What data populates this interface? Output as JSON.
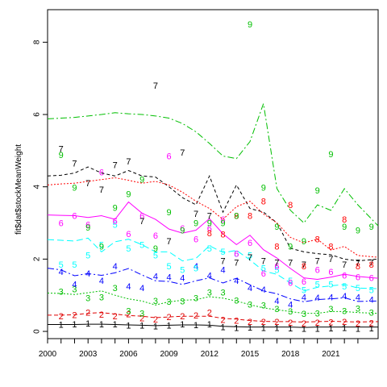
{
  "chart_data": {
    "type": "line",
    "title": "",
    "xlabel": "",
    "ylabel": "fit$dat$stockMeanWeight",
    "xlim": [
      2000,
      2024.5
    ],
    "ylim": [
      -0.2,
      8.9
    ],
    "x_ticks": [
      2000,
      2001,
      2002,
      2003,
      2004,
      2005,
      2006,
      2007,
      2008,
      2009,
      2010,
      2011,
      2012,
      2013,
      2014,
      2015,
      2016,
      2017,
      2018,
      2019,
      2020,
      2021,
      2022,
      2023
    ],
    "x_tick_labels": [
      "2000",
      "",
      "",
      "2003",
      "",
      "",
      "2006",
      "",
      "",
      "2009",
      "",
      "",
      "2012",
      "",
      "",
      "2015",
      "",
      "",
      "2018",
      "",
      "",
      "2021",
      "",
      ""
    ],
    "y_ticks": [
      0,
      2,
      4,
      6,
      8
    ],
    "y_tick_labels": [
      "0",
      "2",
      "4",
      "6",
      "8"
    ],
    "grid": false,
    "legend": "none",
    "series": [
      {
        "label": "1",
        "color": "#000000",
        "dash": "",
        "fit_x": [
          2000,
          2001,
          2002,
          2003,
          2004,
          2005,
          2006,
          2007,
          2008,
          2009,
          2010,
          2011,
          2012,
          2013,
          2014,
          2015,
          2016,
          2017,
          2018,
          2019,
          2020,
          2021,
          2022,
          2023,
          2024.5
        ],
        "fit_y": [
          0.19,
          0.19,
          0.19,
          0.2,
          0.2,
          0.19,
          0.18,
          0.17,
          0.16,
          0.17,
          0.18,
          0.18,
          0.17,
          0.14,
          0.13,
          0.12,
          0.12,
          0.12,
          0.12,
          0.11,
          0.12,
          0.12,
          0.12,
          0.12,
          0.12
        ],
        "obs_x": [
          2001,
          2002,
          2003,
          2004,
          2005,
          2006,
          2007,
          2008,
          2009,
          2010,
          2011,
          2012,
          2013,
          2014,
          2015,
          2016,
          2017,
          2018,
          2019,
          2020,
          2021,
          2022,
          2023,
          2024
        ],
        "obs_y": [
          0.19,
          0.2,
          0.22,
          0.2,
          0.2,
          0.16,
          0.17,
          0.14,
          0.17,
          0.2,
          0.18,
          0.2,
          0.12,
          0.1,
          0.11,
          0.1,
          0.1,
          0.09,
          0.08,
          0.08,
          0.09,
          0.1,
          0.08,
          0.09
        ]
      },
      {
        "label": "2",
        "color": "#df0000",
        "dash": "5,3",
        "fit_x": [
          2000,
          2001,
          2002,
          2003,
          2004,
          2005,
          2006,
          2007,
          2008,
          2009,
          2010,
          2011,
          2012,
          2013,
          2014,
          2015,
          2016,
          2017,
          2018,
          2019,
          2020,
          2021,
          2022,
          2023,
          2024.5
        ],
        "fit_y": [
          0.45,
          0.45,
          0.46,
          0.5,
          0.52,
          0.48,
          0.44,
          0.42,
          0.38,
          0.4,
          0.42,
          0.42,
          0.42,
          0.36,
          0.34,
          0.3,
          0.28,
          0.27,
          0.27,
          0.26,
          0.27,
          0.28,
          0.27,
          0.26,
          0.27
        ],
        "obs_x": [
          2001,
          2002,
          2003,
          2004,
          2005,
          2006,
          2007,
          2008,
          2009,
          2010,
          2011,
          2012,
          2013,
          2014,
          2015,
          2016,
          2017,
          2018,
          2019,
          2020,
          2021,
          2022,
          2023,
          2024
        ],
        "obs_y": [
          0.42,
          0.45,
          0.52,
          0.47,
          0.42,
          0.48,
          0.36,
          0.33,
          0.4,
          0.42,
          0.44,
          0.52,
          0.32,
          0.3,
          0.27,
          0.27,
          0.26,
          0.24,
          0.22,
          0.24,
          0.25,
          0.27,
          0.22,
          0.23
        ]
      },
      {
        "label": "3",
        "color": "#00bf00",
        "dash": "2,2",
        "fit_x": [
          2000,
          2001,
          2002,
          2003,
          2004,
          2005,
          2006,
          2007,
          2008,
          2009,
          2010,
          2011,
          2012,
          2013,
          2014,
          2015,
          2016,
          2017,
          2018,
          2019,
          2020,
          2021,
          2022,
          2023,
          2024.5
        ],
        "fit_y": [
          1.06,
          1.05,
          1.02,
          1.07,
          1.12,
          1.0,
          0.9,
          0.84,
          0.73,
          0.82,
          0.86,
          0.88,
          0.96,
          0.92,
          0.84,
          0.74,
          0.65,
          0.6,
          0.55,
          0.5,
          0.5,
          0.55,
          0.55,
          0.52,
          0.5
        ],
        "obs_x": [
          2001,
          2002,
          2003,
          2004,
          2005,
          2006,
          2007,
          2008,
          2009,
          2010,
          2011,
          2012,
          2013,
          2014,
          2015,
          2016,
          2017,
          2018,
          2019,
          2020,
          2021,
          2022,
          2023,
          2024
        ],
        "obs_y": [
          1.1,
          1.17,
          0.92,
          0.94,
          1.2,
          0.57,
          0.5,
          0.85,
          0.82,
          0.83,
          0.92,
          1.08,
          1.08,
          0.86,
          0.74,
          0.72,
          0.62,
          0.56,
          0.49,
          0.5,
          0.62,
          0.57,
          0.63,
          0.52
        ]
      },
      {
        "label": "4",
        "color": "#0000ff",
        "dash": "8,3,2,3",
        "fit_x": [
          2000,
          2001,
          2002,
          2003,
          2004,
          2005,
          2006,
          2007,
          2008,
          2009,
          2010,
          2011,
          2012,
          2013,
          2014,
          2015,
          2016,
          2017,
          2018,
          2019,
          2020,
          2021,
          2022,
          2023,
          2024.5
        ],
        "fit_y": [
          1.75,
          1.7,
          1.54,
          1.6,
          1.55,
          1.62,
          1.74,
          1.56,
          1.4,
          1.38,
          1.3,
          1.4,
          1.48,
          1.34,
          1.47,
          1.29,
          1.12,
          1.04,
          0.9,
          0.82,
          0.88,
          0.9,
          0.93,
          0.83,
          0.84
        ],
        "obs_x": [
          2001,
          2002,
          2003,
          2004,
          2005,
          2006,
          2007,
          2008,
          2009,
          2010,
          2011,
          2012,
          2013,
          2014,
          2015,
          2016,
          2017,
          2018,
          2019,
          2020,
          2021,
          2022,
          2023,
          2024
        ],
        "obs_y": [
          1.65,
          1.3,
          1.6,
          1.4,
          1.8,
          1.25,
          1.2,
          1.52,
          1.5,
          1.48,
          1.8,
          1.55,
          1.7,
          1.4,
          1.2,
          1.16,
          0.85,
          0.75,
          0.95,
          0.93,
          0.95,
          0.98,
          0.95,
          0.88
        ]
      },
      {
        "label": "5",
        "color": "#00ffff",
        "dash": "8,4",
        "fit_x": [
          2000,
          2001,
          2002,
          2003,
          2004,
          2005,
          2006,
          2007,
          2008,
          2009,
          2010,
          2011,
          2012,
          2013,
          2014,
          2015,
          2016,
          2017,
          2018,
          2019,
          2020,
          2021,
          2022,
          2023,
          2024.5
        ],
        "fit_y": [
          2.54,
          2.52,
          2.5,
          2.58,
          2.2,
          2.48,
          2.55,
          2.4,
          2.2,
          2.2,
          1.95,
          2.02,
          2.37,
          2.18,
          2.24,
          1.98,
          1.67,
          1.58,
          1.34,
          1.12,
          1.22,
          1.26,
          1.3,
          1.2,
          1.18
        ],
        "obs_x": [
          2001,
          2002,
          2003,
          2004,
          2005,
          2006,
          2007,
          2008,
          2009,
          2010,
          2011,
          2012,
          2013,
          2014,
          2015,
          2016,
          2017,
          2018,
          2019,
          2020,
          2021,
          2022,
          2023,
          2024
        ],
        "obs_y": [
          1.85,
          1.85,
          2.1,
          2.4,
          2.95,
          2.3,
          2.4,
          2.1,
          1.8,
          1.7,
          1.75,
          2.3,
          2.2,
          2.15,
          2.1,
          1.75,
          1.7,
          1.4,
          1.15,
          1.3,
          1.3,
          1.25,
          1.2,
          1.15
        ]
      },
      {
        "label": "6",
        "color": "#ff00ff",
        "dash": "",
        "fit_x": [
          2000,
          2001,
          2002,
          2003,
          2004,
          2005,
          2006,
          2007,
          2008,
          2009,
          2010,
          2011,
          2012,
          2013,
          2014,
          2015,
          2016,
          2017,
          2018,
          2019,
          2020,
          2021,
          2022,
          2023,
          2024.5
        ],
        "fit_y": [
          3.22,
          3.21,
          3.2,
          3.15,
          3.2,
          3.1,
          3.58,
          3.27,
          3.1,
          2.83,
          2.72,
          2.8,
          3.12,
          2.7,
          2.4,
          2.66,
          2.26,
          2.03,
          1.74,
          1.48,
          1.44,
          1.5,
          1.58,
          1.52,
          1.47
        ],
        "obs_x": [
          2001,
          2002,
          2003,
          2004,
          2005,
          2006,
          2007,
          2008,
          2009,
          2010,
          2011,
          2012,
          2013,
          2014,
          2015,
          2016,
          2017,
          2018,
          2019,
          2020,
          2021,
          2022,
          2023,
          2024
        ],
        "obs_y": [
          3.0,
          3.2,
          2.95,
          4.4,
          3.05,
          2.7,
          3.2,
          2.65,
          4.85,
          2.85,
          2.55,
          2.85,
          3.1,
          2.15,
          2.45,
          1.6,
          1.8,
          1.35,
          1.38,
          1.7,
          1.65,
          1.55,
          1.5,
          1.48
        ]
      },
      {
        "label": "7",
        "color": "#000000",
        "dash": "4,3",
        "fit_x": [
          2000,
          2001,
          2002,
          2003,
          2004,
          2005,
          2006,
          2007,
          2008,
          2009,
          2010,
          2011,
          2012,
          2013,
          2014,
          2015,
          2016,
          2017,
          2018,
          2019,
          2020,
          2021,
          2022,
          2023,
          2024.5
        ],
        "fit_y": [
          4.3,
          4.32,
          4.38,
          4.55,
          4.38,
          4.3,
          4.45,
          4.3,
          4.27,
          4.0,
          3.7,
          3.5,
          4.3,
          3.3,
          4.05,
          3.4,
          3.3,
          3.0,
          2.3,
          2.2,
          2.15,
          2.12,
          2.0,
          1.95,
          2.0
        ],
        "obs_x": [
          2001,
          2002,
          2003,
          2004,
          2005,
          2006,
          2007,
          2008,
          2009,
          2010,
          2011,
          2012,
          2013,
          2014,
          2015,
          2016,
          2017,
          2018,
          2019,
          2020,
          2021,
          2022,
          2023,
          2024
        ],
        "obs_y": [
          5.05,
          4.65,
          4.1,
          3.92,
          4.6,
          4.7,
          3.05,
          6.8,
          2.5,
          4.95,
          3.25,
          3.2,
          1.95,
          1.9,
          2.05,
          1.95,
          1.9,
          1.9,
          1.85,
          1.95,
          2.0,
          1.85,
          1.9,
          1.9
        ]
      },
      {
        "label": "8",
        "color": "#ff0000",
        "dash": "2,2",
        "fit_x": [
          2000,
          2001,
          2002,
          2003,
          2004,
          2005,
          2006,
          2007,
          2008,
          2009,
          2010,
          2011,
          2012,
          2013,
          2014,
          2015,
          2016,
          2017,
          2018,
          2019,
          2020,
          2021,
          2022,
          2023,
          2024.5
        ],
        "fit_y": [
          4.05,
          4.08,
          4.1,
          4.15,
          4.2,
          4.25,
          4.18,
          4.1,
          4.15,
          4.05,
          3.85,
          3.6,
          3.4,
          3.1,
          3.45,
          3.6,
          3.25,
          3.0,
          2.6,
          2.45,
          2.55,
          2.25,
          2.35,
          2.1,
          2.05
        ],
        "obs_x": [
          2012,
          2013,
          2014,
          2015,
          2016,
          2017,
          2018,
          2019,
          2020,
          2021,
          2022,
          2023,
          2024
        ],
        "obs_y": [
          2.72,
          2.68,
          3.2,
          3.2,
          3.6,
          2.35,
          3.5,
          1.8,
          2.55,
          2.35,
          3.1,
          1.8,
          1.85
        ]
      },
      {
        "label": "9",
        "color": "#00bf00",
        "dash": "8,3,2,3",
        "fit_x": [
          2000,
          2001,
          2002,
          2003,
          2004,
          2005,
          2006,
          2007,
          2008,
          2009,
          2010,
          2011,
          2012,
          2013,
          2014,
          2015,
          2016,
          2017,
          2018,
          2019,
          2020,
          2021,
          2022,
          2023,
          2024.5
        ],
        "fit_y": [
          5.88,
          5.9,
          5.92,
          5.96,
          6.0,
          6.05,
          6.02,
          6.0,
          5.96,
          5.9,
          5.75,
          5.52,
          5.2,
          4.85,
          4.78,
          5.25,
          6.3,
          3.95,
          3.35,
          3.0,
          3.5,
          3.35,
          3.95,
          3.5,
          2.92
        ],
        "obs_x": [
          2001,
          2002,
          2003,
          2004,
          2005,
          2006,
          2007,
          2008,
          2009,
          2010,
          2011,
          2012,
          2013,
          2014,
          2015,
          2016,
          2017,
          2018,
          2019,
          2020,
          2021,
          2022,
          2023,
          2024
        ],
        "obs_y": [
          4.88,
          3.98,
          2.88,
          2.35,
          3.42,
          3.8,
          4.2,
          2.3,
          3.3,
          2.8,
          3.0,
          3.0,
          3.0,
          3.2,
          8.5,
          3.98,
          2.9,
          2.35,
          2.5,
          3.9,
          4.9,
          2.9,
          2.8,
          2.9
        ]
      }
    ]
  }
}
